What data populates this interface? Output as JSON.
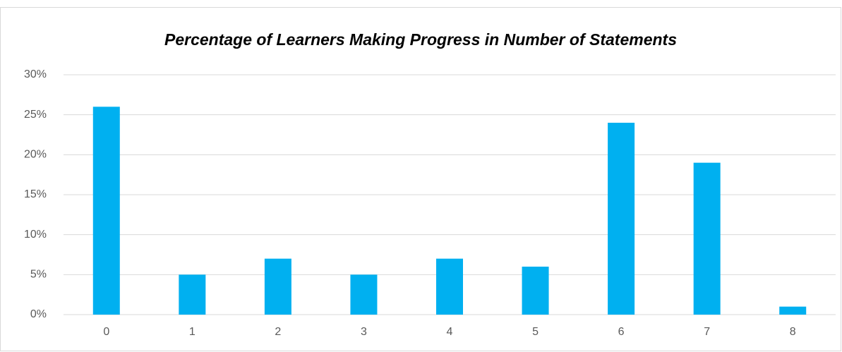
{
  "chart_data": {
    "type": "bar",
    "title": "Percentage of Learners Making Progress in Number of Statements",
    "categories": [
      "0",
      "1",
      "2",
      "3",
      "4",
      "5",
      "6",
      "7",
      "8"
    ],
    "values": [
      26,
      5,
      7,
      5,
      7,
      6,
      24,
      19,
      1
    ],
    "color": "#00b0f0",
    "ylim": [
      0,
      30
    ],
    "yticks": [
      {
        "value": 0,
        "label": "0%"
      },
      {
        "value": 5,
        "label": "5%"
      },
      {
        "value": 10,
        "label": "10%"
      },
      {
        "value": 15,
        "label": "15%"
      },
      {
        "value": 20,
        "label": "20%"
      },
      {
        "value": 25,
        "label": "25%"
      },
      {
        "value": 30,
        "label": "30%"
      }
    ],
    "grid": true
  }
}
